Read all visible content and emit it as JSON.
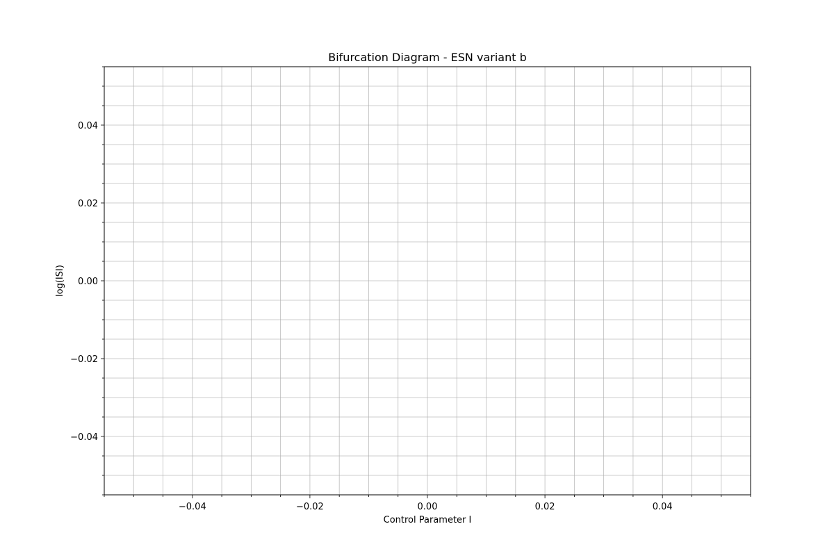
{
  "chart_data": {
    "type": "scatter",
    "title": "Bifurcation Diagram - ESN variant b",
    "xlabel": "Control Parameter I",
    "ylabel": "log(ISI)",
    "xlim": [
      -0.055,
      0.055
    ],
    "ylim": [
      -0.055,
      0.055
    ],
    "x_major_ticks": [
      -0.04,
      -0.02,
      0.0,
      0.02,
      0.04
    ],
    "x_tick_labels": [
      "−0.04",
      "−0.02",
      "0.00",
      "0.02",
      "0.04"
    ],
    "y_major_ticks": [
      -0.04,
      -0.02,
      0.0,
      0.02,
      0.04
    ],
    "y_tick_labels": [
      "−0.04",
      "−0.02",
      "0.00",
      "0.02",
      "0.04"
    ],
    "minor_tick_step": 0.005,
    "grid": true,
    "grid_includes_minor": true,
    "series": [
      {
        "x": [],
        "y": []
      }
    ],
    "colors": {
      "grid": "#b0b0b0",
      "axes": "#000000",
      "background": "#ffffff"
    }
  }
}
